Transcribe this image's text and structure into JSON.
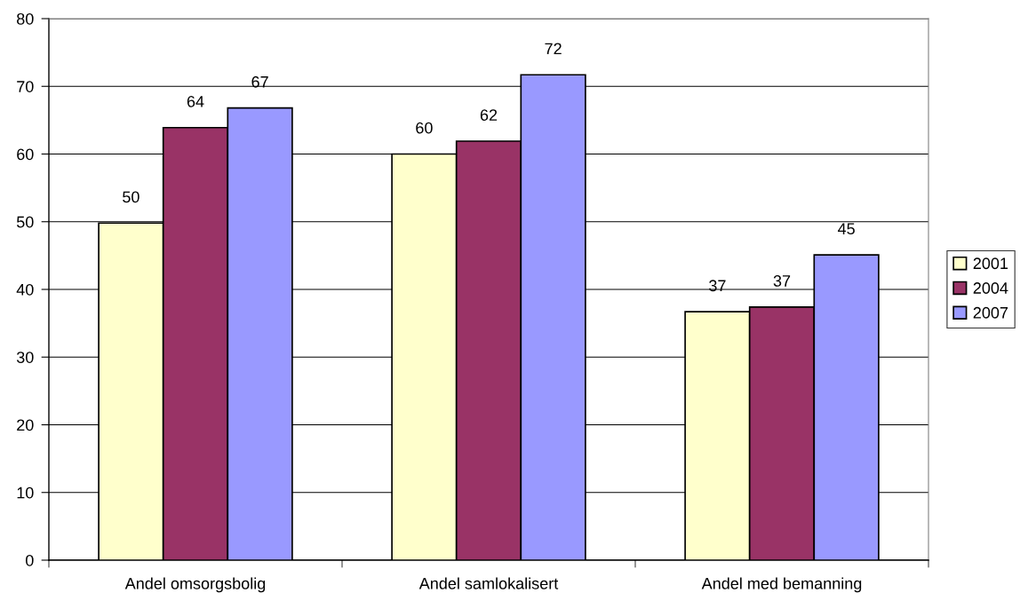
{
  "chart_data": {
    "type": "bar",
    "categories": [
      "Andel omsorgsbolig",
      "Andel samlokalisert",
      "Andel med bemanning"
    ],
    "series": [
      {
        "name": "2001",
        "color": "#ffffcc",
        "values": [
          49.8,
          60.0,
          36.7
        ],
        "value_labels": [
          "50",
          "60",
          "37"
        ]
      },
      {
        "name": "2004",
        "color": "#993366",
        "values": [
          63.9,
          61.9,
          37.4
        ],
        "value_labels": [
          "64",
          "62",
          "37"
        ]
      },
      {
        "name": "2007",
        "color": "#9999ff",
        "values": [
          66.8,
          71.7,
          45.1
        ],
        "value_labels": [
          "67",
          "72",
          "45"
        ]
      }
    ],
    "ylim": [
      0,
      80
    ],
    "yticks": [
      0,
      10,
      20,
      30,
      40,
      50,
      60,
      70,
      80
    ],
    "grid": "y",
    "legend": "right"
  }
}
